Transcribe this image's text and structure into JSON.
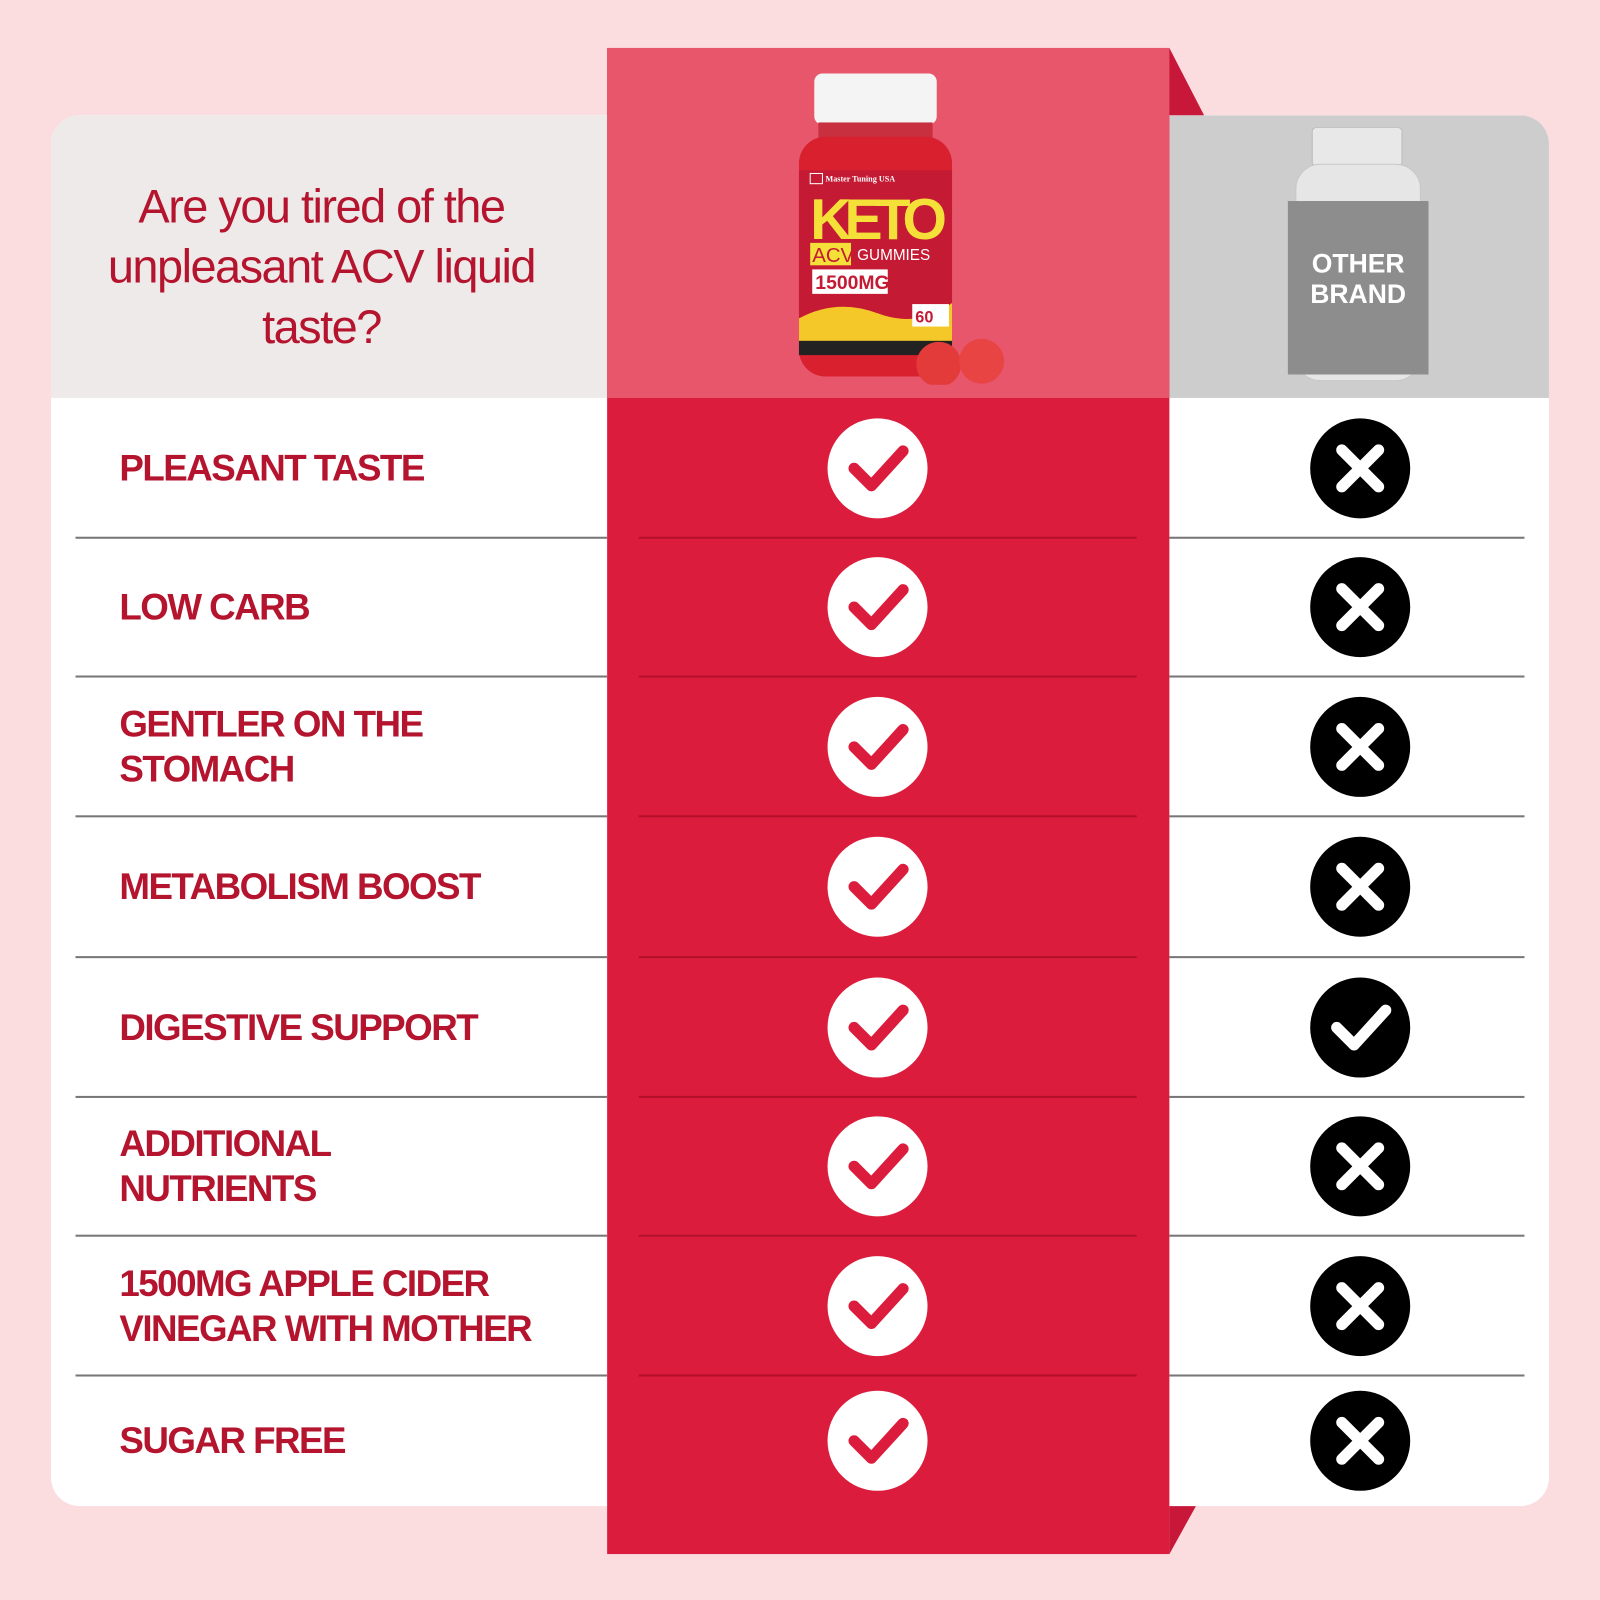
{
  "header": {
    "question": "Are you tired of the unpleasant ACV liquid taste?",
    "product_bottle": {
      "brand": "Master Tuning USA",
      "name": "KETO",
      "sub1": "ACV",
      "sub2": "GUMMIES",
      "dose": "1500MG",
      "count": "60"
    },
    "other_brand_label": "OTHER BRAND"
  },
  "colors": {
    "background": "#fbdde0",
    "accent_red": "#dc1c3c",
    "text_red": "#b5142e",
    "header_pink": "#e8566c",
    "other_grey": "#cdcdcd"
  },
  "rows": [
    {
      "label": "PLEASANT TASTE",
      "product": "check",
      "other": "cross"
    },
    {
      "label": "LOW CARB",
      "product": "check",
      "other": "cross"
    },
    {
      "label": "GENTLER ON THE STOMACH",
      "product": "check",
      "other": "cross"
    },
    {
      "label": "METABOLISM BOOST",
      "product": "check",
      "other": "cross"
    },
    {
      "label": "DIGESTIVE SUPPORT",
      "product": "check",
      "other": "check"
    },
    {
      "label": "ADDITIONAL NUTRIENTS",
      "product": "check",
      "other": "cross"
    },
    {
      "label": "1500MG APPLE CIDER VINEGAR WITH MOTHER",
      "product": "check",
      "other": "cross"
    },
    {
      "label": "SUGAR FREE",
      "product": "check",
      "other": "cross"
    }
  ]
}
